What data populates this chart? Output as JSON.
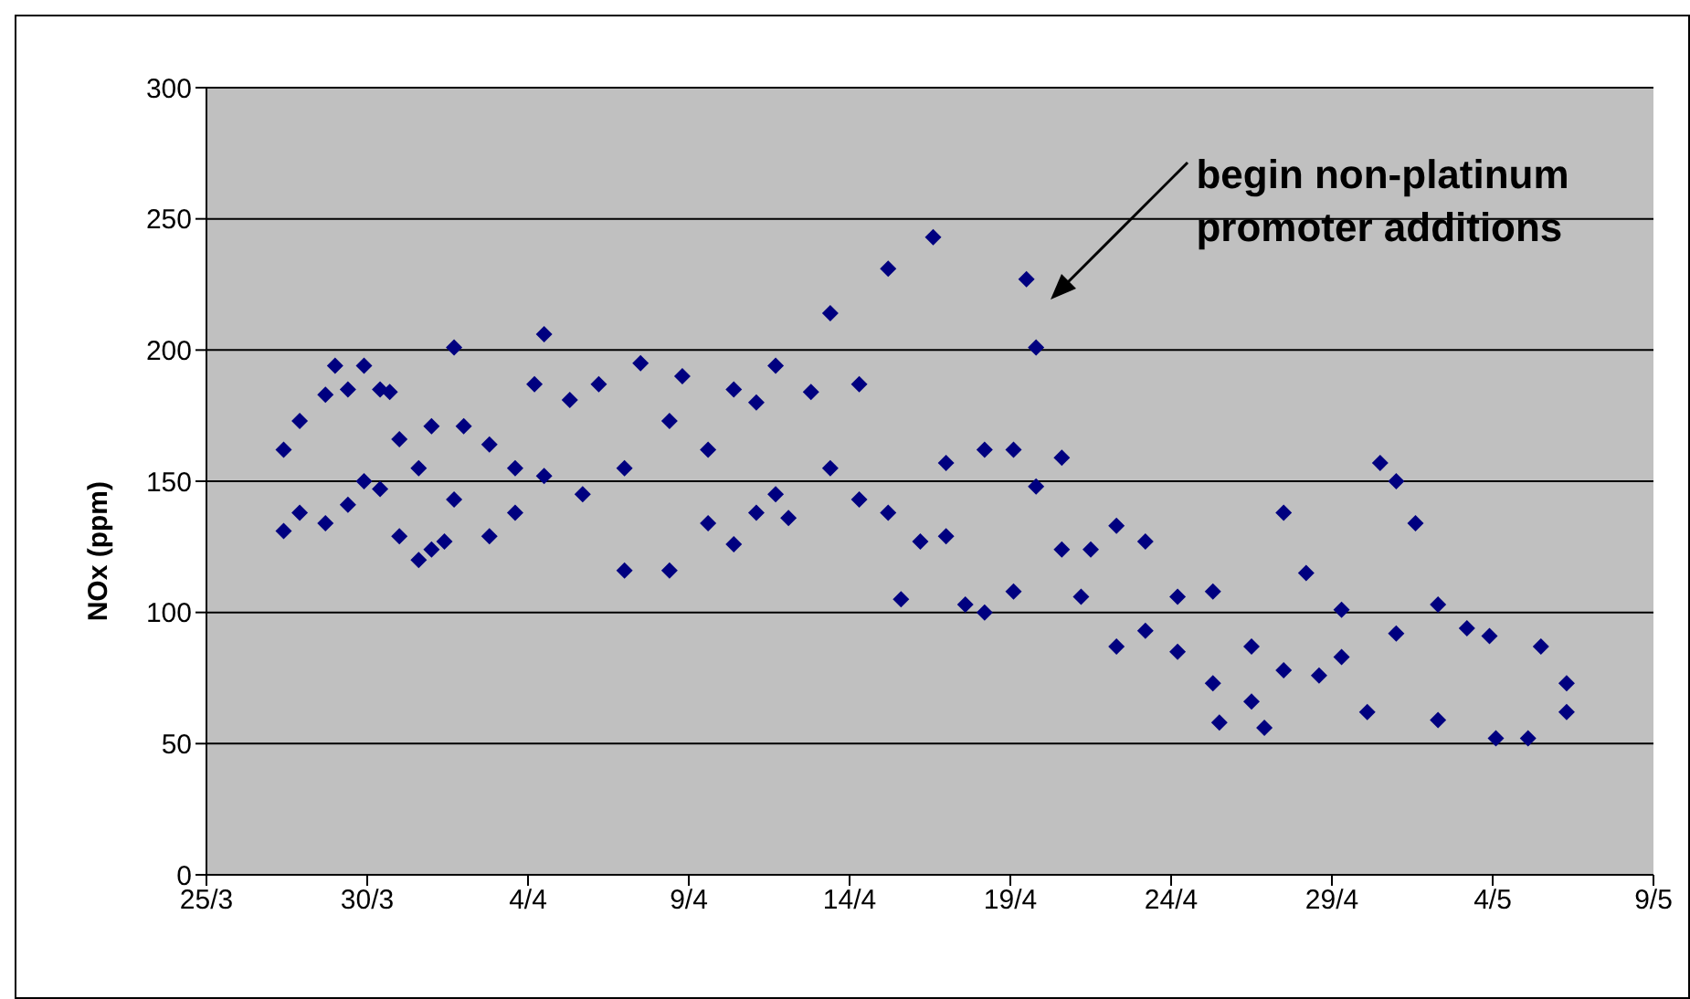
{
  "chart_data": {
    "type": "scatter",
    "ylabel": "NOx (ppm)",
    "color": "#000080",
    "marker": "diamond",
    "grid": "y",
    "xlim": [
      "--03-25",
      "--05-09"
    ],
    "xticks": [
      {
        "value": "--03-25",
        "label": "25/3"
      },
      {
        "value": "--03-30",
        "label": "30/3"
      },
      {
        "value": "--04-04",
        "label": "4/4"
      },
      {
        "value": "--04-09",
        "label": "9/4"
      },
      {
        "value": "--04-14",
        "label": "14/4"
      },
      {
        "value": "--04-19",
        "label": "19/4"
      },
      {
        "value": "--04-24",
        "label": "24/4"
      },
      {
        "value": "--04-29",
        "label": "29/4"
      },
      {
        "value": "--05-04",
        "label": "4/5"
      },
      {
        "value": "--05-09",
        "label": "9/5"
      }
    ],
    "ylim": [
      0,
      300
    ],
    "yticks": [
      0,
      50,
      100,
      150,
      200,
      250,
      300
    ],
    "x": [
      "--03-27T09:36",
      "--03-27T09:36",
      "--03-27T21:36",
      "--03-27T21:36",
      "--03-28T16:48",
      "--03-28T16:48",
      "--03-29T00:00",
      "--03-29T09:36",
      "--03-29T09:36",
      "--03-29T21:36",
      "--03-29T21:36",
      "--03-30T09:36",
      "--03-30T09:36",
      "--03-30T16:48",
      "--03-31T00:00",
      "--03-31T00:00",
      "--03-31T14:24",
      "--03-31T14:24",
      "--04-01T00:00",
      "--04-01T00:00",
      "--04-01T09:36",
      "--04-01T16:48",
      "--04-01T16:48",
      "--04-02T00:00",
      "--04-02T19:12",
      "--04-02T19:12",
      "--04-03T14:24",
      "--04-03T14:24",
      "--04-04T04:48",
      "--04-04T12:00",
      "--04-04T12:00",
      "--04-05T07:12",
      "--04-05T16:48",
      "--04-06T04:48",
      "--04-07T00:00",
      "--04-07T00:00",
      "--04-07T12:00",
      "--04-08T09:36",
      "--04-08T09:36",
      "--04-08T19:12",
      "--04-09T14:24",
      "--04-09T14:24",
      "--04-10T09:36",
      "--04-10T09:36",
      "--04-11T02:24",
      "--04-11T02:24",
      "--04-11T16:48",
      "--04-11T16:48",
      "--04-12T02:24",
      "--04-12T19:12",
      "--04-13T09:36",
      "--04-13T09:36",
      "--04-14T07:12",
      "--04-14T07:12",
      "--04-15T04:48",
      "--04-15T04:48",
      "--04-15T14:24",
      "--04-16T04:48",
      "--04-16T14:24",
      "--04-17T00:00",
      "--04-17T00:00",
      "--04-17T14:24",
      "--04-18T04:48",
      "--04-18T04:48",
      "--04-19T02:24",
      "--04-19T02:24",
      "--04-19T12:00",
      "--04-19T19:12",
      "--04-19T19:12",
      "--04-20T14:24",
      "--04-20T14:24",
      "--04-21T04:48",
      "--04-21T12:00",
      "--04-22T07:12",
      "--04-22T07:12",
      "--04-23T04:48",
      "--04-23T04:48",
      "--04-24T04:48",
      "--04-24T04:48",
      "--04-25T07:12",
      "--04-25T07:12",
      "--04-25T12:00",
      "--04-26T12:00",
      "--04-26T12:00",
      "--04-26T21:36",
      "--04-27T12:00",
      "--04-27T12:00",
      "--04-28T04:48",
      "--04-28T14:24",
      "--04-29T07:12",
      "--04-29T07:12",
      "--04-30T02:24",
      "--04-30T12:00",
      "--05-01T00:00",
      "--05-01T00:00",
      "--05-01T14:24",
      "--05-02T07:12",
      "--05-02T07:12",
      "--05-03T04:48",
      "--05-03T21:36",
      "--05-04T02:24",
      "--05-05T02:24",
      "--05-05T12:00",
      "--05-06T07:12",
      "--05-06T07:12"
    ],
    "values": [
      162,
      131,
      173,
      138,
      183,
      134,
      194,
      141,
      185,
      194,
      150,
      147,
      185,
      184,
      129,
      166,
      120,
      155,
      171,
      124,
      127,
      201,
      143,
      171,
      129,
      164,
      138,
      155,
      187,
      206,
      152,
      181,
      145,
      187,
      116,
      155,
      195,
      116,
      173,
      190,
      162,
      134,
      126,
      185,
      180,
      138,
      194,
      145,
      136,
      184,
      214,
      155,
      143,
      187,
      231,
      138,
      105,
      127,
      243,
      129,
      157,
      103,
      100,
      162,
      108,
      162,
      227,
      201,
      148,
      159,
      124,
      106,
      124,
      133,
      87,
      127,
      93,
      106,
      85,
      108,
      73,
      58,
      87,
      66,
      56,
      138,
      78,
      115,
      76,
      101,
      83,
      62,
      157,
      92,
      150,
      134,
      103,
      59,
      94,
      91,
      52,
      52,
      87,
      73,
      62
    ],
    "annotations": [
      "begin non-platinum promoter additions"
    ]
  }
}
